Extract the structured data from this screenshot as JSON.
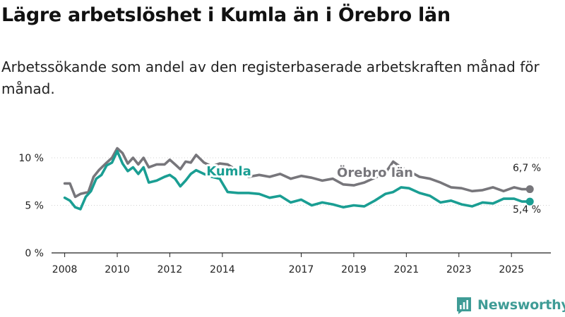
{
  "title": "Lägre arbetslöshet i Kumla än i Örebro län",
  "subtitle": "Arbetssökande som andel av den registerbaserade arbetskraften månad för månad.",
  "brand": {
    "name": "Newsworthy",
    "icon": "bar-chart-icon"
  },
  "colors": {
    "orebro": "#77767b",
    "kumla": "#1a9e93",
    "axis": "#222222",
    "grid": "#d0d0d0"
  },
  "chart_data": {
    "type": "line",
    "ylim": [
      0,
      12
    ],
    "xlim": [
      2007.5,
      2026.5
    ],
    "ytick_values": [
      0,
      5,
      10
    ],
    "ytick_labels": [
      "0 %",
      "5 %",
      "10 %"
    ],
    "xtick_values": [
      2008,
      2010,
      2012,
      2014,
      2017,
      2019,
      2021,
      2023,
      2025
    ],
    "xtick_labels": [
      "2008",
      "2010",
      "2012",
      "2014",
      "2017",
      "2019",
      "2021",
      "2023",
      "2025"
    ],
    "series": [
      {
        "name": "Örebro län",
        "label": "Örebro län",
        "end_label": "6,7 %",
        "color": "#77767b",
        "x": [
          2008.0,
          2008.2,
          2008.4,
          2008.6,
          2008.9,
          2009.1,
          2009.3,
          2009.6,
          2009.8,
          2010.0,
          2010.2,
          2010.4,
          2010.6,
          2010.8,
          2011.0,
          2011.2,
          2011.5,
          2011.8,
          2012.0,
          2012.2,
          2012.4,
          2012.6,
          2012.8,
          2013.0,
          2013.3,
          2013.6,
          2013.9,
          2014.2,
          2014.6,
          2015.0,
          2015.4,
          2015.8,
          2016.2,
          2016.6,
          2017.0,
          2017.4,
          2017.8,
          2018.2,
          2018.6,
          2019.0,
          2019.4,
          2019.8,
          2020.2,
          2020.5,
          2020.8,
          2021.1,
          2021.5,
          2021.9,
          2022.3,
          2022.7,
          2023.1,
          2023.5,
          2023.9,
          2024.3,
          2024.7,
          2025.1,
          2025.4,
          2025.7
        ],
        "y": [
          7.3,
          7.3,
          5.9,
          6.2,
          6.4,
          8.0,
          8.7,
          9.5,
          10.0,
          11.0,
          10.5,
          9.4,
          10.0,
          9.3,
          10.0,
          9.0,
          9.3,
          9.3,
          9.8,
          9.3,
          8.8,
          9.6,
          9.5,
          10.3,
          9.5,
          9.1,
          9.4,
          9.3,
          8.6,
          8.0,
          8.2,
          8.0,
          8.3,
          7.8,
          8.1,
          7.9,
          7.6,
          7.8,
          7.2,
          7.1,
          7.4,
          7.9,
          8.4,
          9.6,
          9.0,
          8.6,
          8.0,
          7.8,
          7.4,
          6.9,
          6.8,
          6.5,
          6.6,
          6.9,
          6.5,
          6.9,
          6.7,
          6.7
        ]
      },
      {
        "name": "Kumla",
        "label": "Kumla",
        "end_label": "5,4 %",
        "color": "#1a9e93",
        "x": [
          2008.0,
          2008.2,
          2008.4,
          2008.6,
          2008.8,
          2009.0,
          2009.2,
          2009.4,
          2009.6,
          2009.8,
          2010.0,
          2010.2,
          2010.4,
          2010.6,
          2010.8,
          2011.0,
          2011.2,
          2011.5,
          2011.8,
          2012.0,
          2012.2,
          2012.4,
          2012.6,
          2012.8,
          2013.0,
          2013.3,
          2013.6,
          2013.9,
          2014.2,
          2014.6,
          2015.0,
          2015.4,
          2015.8,
          2016.2,
          2016.6,
          2017.0,
          2017.4,
          2017.8,
          2018.2,
          2018.6,
          2019.0,
          2019.4,
          2019.8,
          2020.2,
          2020.5,
          2020.8,
          2021.1,
          2021.5,
          2021.9,
          2022.3,
          2022.7,
          2023.1,
          2023.5,
          2023.9,
          2024.3,
          2024.7,
          2025.1,
          2025.4,
          2025.7
        ],
        "y": [
          5.8,
          5.5,
          4.8,
          4.6,
          5.9,
          6.5,
          7.8,
          8.2,
          9.2,
          9.5,
          10.7,
          9.4,
          8.6,
          9.0,
          8.3,
          9.0,
          7.4,
          7.6,
          8.0,
          8.2,
          7.8,
          7.0,
          7.6,
          8.3,
          8.7,
          8.3,
          8.0,
          7.8,
          6.4,
          6.3,
          6.3,
          6.2,
          5.8,
          6.0,
          5.3,
          5.6,
          5.0,
          5.3,
          5.1,
          4.8,
          5.0,
          4.9,
          5.5,
          6.2,
          6.4,
          6.9,
          6.8,
          6.3,
          6.0,
          5.3,
          5.5,
          5.1,
          4.9,
          5.3,
          5.2,
          5.7,
          5.7,
          5.4,
          5.4
        ]
      }
    ]
  }
}
